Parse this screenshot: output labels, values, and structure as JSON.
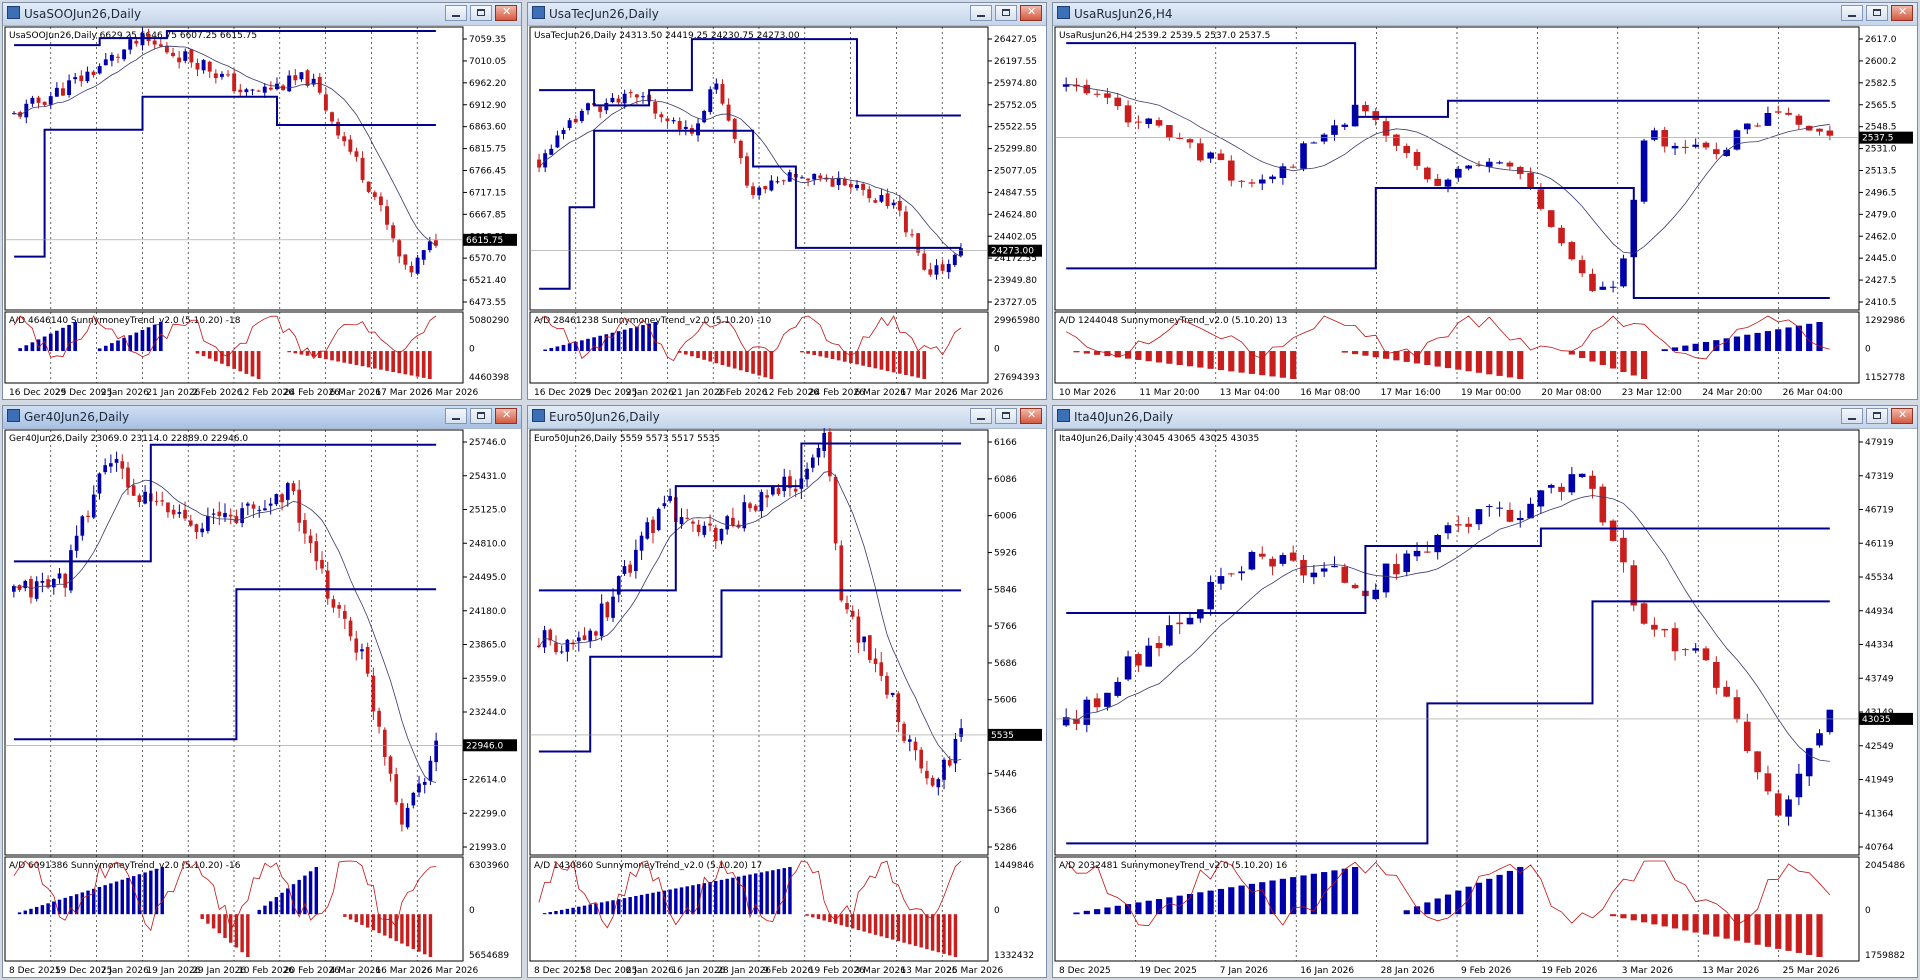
{
  "windows": [
    {
      "id": "w1",
      "title": "UsaSOOJun26,Daily",
      "active": false,
      "info": "UsaSOOJun26,Daily  6629.25 6646.75 6607.25 6615.75",
      "price_ticks": [
        "7059.35",
        "7010.05",
        "6962.20",
        "6912.90",
        "6863.60",
        "6815.75",
        "6766.45",
        "6717.15",
        "6667.85",
        "6618.55",
        "6570.70",
        "6521.40",
        "6473.55"
      ],
      "current_price": "6615.75",
      "ind_label": "A/D 4646140  SunnymoneyTrend_v2.0 (5.10.20)  -18",
      "ind_ticks": [
        "5080290",
        "0",
        "4460398"
      ],
      "dates": [
        "16 Dec 2025",
        "29 Dec 2025",
        "9 Jan 2026",
        "21 Jan 2026",
        "2 Feb 2026",
        "12 Feb 2026",
        "24 Feb 2026",
        "6 Mar 2026",
        "17 Mar 2026",
        "26 Mar 2026"
      ],
      "scenario": {
        "start": 6880,
        "end": 6616,
        "min": 6475,
        "max": 7060,
        "n": 70,
        "seed": 11,
        "path": [
          [
            0,
            6880
          ],
          [
            0.15,
            6955
          ],
          [
            0.3,
            7040
          ],
          [
            0.45,
            6990
          ],
          [
            0.55,
            6925
          ],
          [
            0.7,
            6960
          ],
          [
            0.85,
            6720
          ],
          [
            0.93,
            6540
          ],
          [
            1,
            6616
          ]
        ],
        "level_steps": [
          [
            0,
            6580
          ],
          [
            0.06,
            6850
          ],
          [
            0.3,
            6920
          ],
          [
            0.62,
            6860
          ],
          [
            1,
            6860
          ]
        ],
        "upper_steps": [
          [
            0,
            7030
          ],
          [
            0.2,
            7045
          ],
          [
            0.35,
            7060
          ],
          [
            0.46,
            7060
          ],
          [
            0.6,
            7060
          ],
          [
            1,
            7060
          ]
        ],
        "hist": [
          [
            0.02,
            0.14,
            1
          ],
          [
            0.2,
            0.35,
            1
          ],
          [
            0.43,
            0.58,
            -1
          ],
          [
            0.65,
            0.98,
            -1
          ]
        ],
        "ad_start": 0.3
      }
    },
    {
      "id": "w2",
      "title": "UsaTecJun26,Daily",
      "active": false,
      "info": "UsaTecJun26,Daily  24313.50 24419.25 24230.75 24273.00",
      "price_ticks": [
        "26427.05",
        "26197.55",
        "25974.80",
        "25752.05",
        "25522.55",
        "25299.80",
        "25077.05",
        "24847.55",
        "24624.80",
        "24402.05",
        "24172.55",
        "23949.80",
        "23727.05"
      ],
      "current_price": "24273.00",
      "ind_label": "A/D 28461238  SunnymoneyTrend_v2.0 (5.10.20)  -10",
      "ind_ticks": [
        "29965980",
        "0",
        "27694393"
      ],
      "dates": [
        "16 Dec 2025",
        "29 Dec 2025",
        "9 Jan 2026",
        "21 Jan 2026",
        "2 Feb 2026",
        "12 Feb 2026",
        "24 Feb 2026",
        "6 Mar 2026",
        "17 Mar 2026",
        "26 Mar 2026"
      ],
      "scenario": {
        "start": 25150,
        "end": 24273,
        "min": 23730,
        "max": 26430,
        "n": 70,
        "seed": 23,
        "path": [
          [
            0,
            25150
          ],
          [
            0.12,
            25700
          ],
          [
            0.25,
            25780
          ],
          [
            0.35,
            25400
          ],
          [
            0.42,
            25900
          ],
          [
            0.5,
            24850
          ],
          [
            0.62,
            25050
          ],
          [
            0.72,
            24950
          ],
          [
            0.85,
            24700
          ],
          [
            0.92,
            24000
          ],
          [
            1,
            24273
          ]
        ],
        "level_steps": [
          [
            0,
            23900
          ],
          [
            0.06,
            24700
          ],
          [
            0.13,
            25450
          ],
          [
            0.3,
            25450
          ],
          [
            0.5,
            25100
          ],
          [
            0.55,
            25100
          ],
          [
            0.6,
            24300
          ],
          [
            1,
            24300
          ]
        ],
        "upper_steps": [
          [
            0,
            25850
          ],
          [
            0.12,
            25700
          ],
          [
            0.25,
            25850
          ],
          [
            0.36,
            26350
          ],
          [
            0.72,
            26350
          ],
          [
            0.74,
            25600
          ],
          [
            1,
            25600
          ]
        ],
        "hist": [
          [
            0.02,
            0.28,
            1
          ],
          [
            0.33,
            0.55,
            -1
          ],
          [
            0.62,
            0.92,
            -1
          ]
        ],
        "ad_start": 0.25
      }
    },
    {
      "id": "w3",
      "title": "UsaRusJun26,H4",
      "active": false,
      "info": "UsaRusJun26,H4  2539.2 2539.5 2537.0 2537.5",
      "price_ticks": [
        "2617.0",
        "2600.2",
        "2582.5",
        "2565.5",
        "2548.5",
        "2531.0",
        "2513.5",
        "2496.5",
        "2479.0",
        "2462.0",
        "2445.0",
        "2427.5",
        "2410.5"
      ],
      "current_price": "2537.5",
      "ind_label": "A/D 1244048  SunnymoneyTrend_v2.0 (5.10.20)  13",
      "ind_ticks": [
        "1292986",
        "0",
        "1152778"
      ],
      "dates": [
        "10 Mar 2026",
        "11 Mar 20:00",
        "13 Mar 04:00",
        "16 Mar 08:00",
        "17 Mar 16:00",
        "19 Mar 00:00",
        "20 Mar 08:00",
        "23 Mar 12:00",
        "24 Mar 20:00",
        "26 Mar 04:00"
      ],
      "scenario": {
        "start": 2575,
        "end": 2537,
        "min": 2412,
        "max": 2617,
        "n": 75,
        "seed": 37,
        "path": [
          [
            0,
            2575
          ],
          [
            0.1,
            2550
          ],
          [
            0.25,
            2500
          ],
          [
            0.38,
            2560
          ],
          [
            0.48,
            2505
          ],
          [
            0.58,
            2520
          ],
          [
            0.68,
            2430
          ],
          [
            0.72,
            2420
          ],
          [
            0.76,
            2540
          ],
          [
            0.85,
            2525
          ],
          [
            0.93,
            2560
          ],
          [
            1,
            2537
          ]
        ],
        "level_steps": [
          [
            0,
            2440
          ],
          [
            0.35,
            2440
          ],
          [
            0.4,
            2500
          ],
          [
            0.55,
            2500
          ],
          [
            0.72,
            2500
          ],
          [
            0.74,
            2418
          ],
          [
            1,
            2418
          ]
        ],
        "upper_steps": [
          [
            0,
            2608
          ],
          [
            0.35,
            2608
          ],
          [
            0.37,
            2553
          ],
          [
            0.45,
            2553
          ],
          [
            0.5,
            2565
          ],
          [
            1,
            2565
          ]
        ],
        "hist": [
          [
            0.02,
            0.3,
            -1
          ],
          [
            0.36,
            0.6,
            -1
          ],
          [
            0.66,
            0.75,
            -1
          ],
          [
            0.78,
            0.99,
            1
          ]
        ],
        "ad_start": 0.4
      }
    },
    {
      "id": "w4",
      "title": "Ger40Jun26,Daily",
      "active": true,
      "info": "Ger40Jun26,Daily  23069.0 23114.0 22889.0 22946.0",
      "price_ticks": [
        "25746.0",
        "25431.0",
        "25125.0",
        "24810.0",
        "24495.0",
        "24180.0",
        "23865.0",
        "23559.0",
        "23244.0",
        "22929.0",
        "22614.0",
        "22299.0",
        "21993.0"
      ],
      "current_price": "22946.0",
      "ind_label": "A/D 6091386  SunnymoneyTrend_v2.0 (5.10.20)  -16",
      "ind_ticks": [
        "6303960",
        "0",
        "5654689"
      ],
      "dates": [
        "8 Dec 2025",
        "19 Dec 2025",
        "7 Jan 2026",
        "19 Jan 2026",
        "29 Jan 2026",
        "10 Feb 2026",
        "20 Feb 2026",
        "4 Mar 2026",
        "16 Mar 2026",
        "26 Mar 2026"
      ],
      "scenario": {
        "start": 24300,
        "end": 22946,
        "min": 21995,
        "max": 25746,
        "n": 75,
        "seed": 41,
        "path": [
          [
            0,
            24300
          ],
          [
            0.12,
            24450
          ],
          [
            0.22,
            25550
          ],
          [
            0.3,
            25150
          ],
          [
            0.45,
            24950
          ],
          [
            0.6,
            25100
          ],
          [
            0.65,
            25300
          ],
          [
            0.72,
            24500
          ],
          [
            0.82,
            23800
          ],
          [
            0.92,
            22300
          ],
          [
            1,
            22946
          ]
        ],
        "level_steps": [
          [
            0,
            23000
          ],
          [
            0.5,
            23000
          ],
          [
            0.52,
            24350
          ],
          [
            1,
            24350
          ]
        ],
        "upper_steps": [
          [
            0,
            24600
          ],
          [
            0.3,
            24600
          ],
          [
            0.32,
            25650
          ],
          [
            1,
            25650
          ]
        ],
        "hist": [
          [
            0.02,
            0.35,
            1
          ],
          [
            0.45,
            0.55,
            -1
          ],
          [
            0.58,
            0.72,
            1
          ],
          [
            0.78,
            0.99,
            -1
          ]
        ],
        "ad_start": 0.45
      }
    },
    {
      "id": "w5",
      "title": "Euro50Jun26,Daily",
      "active": false,
      "info": "Euro50Jun26,Daily  5559 5573 5517 5535",
      "price_ticks": [
        "6166",
        "6086",
        "6006",
        "5926",
        "5846",
        "5766",
        "5686",
        "5606",
        "5526",
        "5446",
        "5366",
        "5286"
      ],
      "current_price": "5535",
      "ind_label": "A/D 1430860  SunnymoneyTrend_v2.0 (5.10.20)  17",
      "ind_ticks": [
        "1449846",
        "0",
        "1332432"
      ],
      "dates": [
        "8 Dec 2025",
        "18 Dec 2025",
        "6 Jan 2026",
        "16 Jan 2026",
        "28 Jan 2026",
        "9 Feb 2026",
        "19 Feb 2026",
        "3 Mar 2026",
        "13 Mar 2026",
        "25 Mar 2026"
      ],
      "scenario": {
        "start": 5730,
        "end": 5535,
        "min": 5290,
        "max": 6170,
        "n": 75,
        "seed": 53,
        "path": [
          [
            0,
            5730
          ],
          [
            0.12,
            5740
          ],
          [
            0.2,
            5870
          ],
          [
            0.3,
            6030
          ],
          [
            0.4,
            5950
          ],
          [
            0.5,
            6010
          ],
          [
            0.62,
            6080
          ],
          [
            0.68,
            6160
          ],
          [
            0.72,
            5800
          ],
          [
            0.82,
            5650
          ],
          [
            0.93,
            5400
          ],
          [
            1,
            5535
          ]
        ],
        "level_steps": [
          [
            0,
            5500
          ],
          [
            0.1,
            5500
          ],
          [
            0.12,
            5700
          ],
          [
            0.38,
            5700
          ],
          [
            0.42,
            5840
          ],
          [
            1,
            5840
          ]
        ],
        "upper_steps": [
          [
            0,
            5840
          ],
          [
            0.3,
            5840
          ],
          [
            0.32,
            6060
          ],
          [
            0.6,
            6060
          ],
          [
            0.62,
            6150
          ],
          [
            1,
            6150
          ]
        ],
        "hist": [
          [
            0.01,
            0.6,
            1
          ],
          [
            0.63,
            0.99,
            -1
          ]
        ],
        "ad_start": 0.05
      }
    },
    {
      "id": "w6",
      "title": "Ita40Jun26,Daily",
      "active": false,
      "info": "Ita40Jun26,Daily  43045 43065 43025 43035",
      "price_ticks": [
        "47919",
        "47319",
        "46719",
        "46119",
        "45534",
        "44934",
        "44334",
        "43749",
        "43149",
        "42549",
        "41949",
        "41364",
        "40764"
      ],
      "current_price": "43035",
      "ind_label": "A/D 2032481  SunnymoneyTrend_v2.0 (5.10.20)  16",
      "ind_ticks": [
        "2045486",
        "0",
        "1759882"
      ],
      "dates": [
        "8 Dec 2025",
        "19 Dec 2025",
        "7 Jan 2026",
        "16 Jan 2026",
        "28 Jan 2026",
        "9 Feb 2026",
        "19 Feb 2026",
        "3 Mar 2026",
        "13 Mar 2026",
        "25 Mar 2026"
      ],
      "scenario": {
        "start": 42900,
        "end": 43035,
        "min": 40770,
        "max": 47920,
        "n": 75,
        "seed": 67,
        "path": [
          [
            0,
            42900
          ],
          [
            0.15,
            44800
          ],
          [
            0.25,
            45800
          ],
          [
            0.4,
            45300
          ],
          [
            0.5,
            46300
          ],
          [
            0.6,
            46700
          ],
          [
            0.68,
            47400
          ],
          [
            0.75,
            44800
          ],
          [
            0.85,
            43800
          ],
          [
            0.93,
            41300
          ],
          [
            1,
            43035
          ]
        ],
        "level_steps": [
          [
            0,
            44850
          ],
          [
            0.35,
            44850
          ],
          [
            0.38,
            46000
          ],
          [
            0.6,
            46000
          ],
          [
            0.62,
            46300
          ],
          [
            1,
            46300
          ]
        ],
        "upper_steps": [
          [
            0,
            40900
          ],
          [
            0.45,
            40900
          ],
          [
            0.47,
            43300
          ],
          [
            0.65,
            43300
          ],
          [
            0.68,
            45050
          ],
          [
            1,
            45050
          ]
        ],
        "hist": [
          [
            0.01,
            0.38,
            1
          ],
          [
            0.45,
            0.6,
            1
          ],
          [
            0.72,
            0.99,
            -1
          ]
        ],
        "ad_start": 0.05
      }
    }
  ],
  "colors": {
    "bull": "#0000aa",
    "bear": "#c81e1e",
    "level": "#00008b",
    "ma": "#3a3a6a",
    "ad": "#c21515",
    "grid": "#000000"
  }
}
